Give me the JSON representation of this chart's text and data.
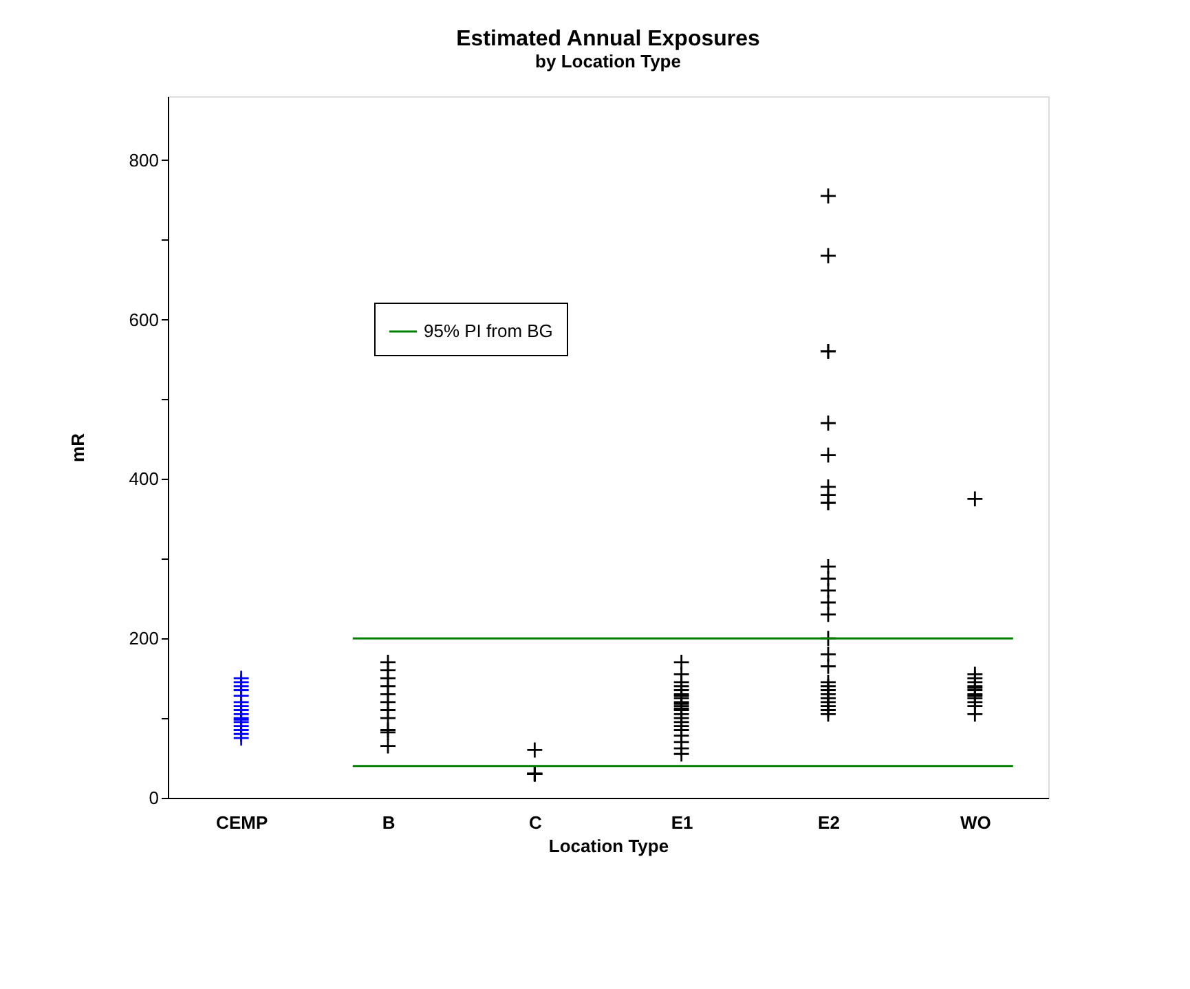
{
  "chart_data": {
    "type": "scatter",
    "title": "Estimated Annual Exposures",
    "subtitle": "by Location Type",
    "xlabel": "Location Type",
    "ylabel": "mR",
    "categories": [
      "CEMP",
      "B",
      "C",
      "E1",
      "E2",
      "WO"
    ],
    "series": [
      {
        "color": "#0000ff",
        "x": [
          "CEMP",
          "CEMP",
          "CEMP",
          "CEMP",
          "CEMP",
          "CEMP",
          "CEMP",
          "CEMP",
          "CEMP",
          "CEMP",
          "CEMP",
          "CEMP",
          "CEMP",
          "CEMP",
          "CEMP",
          "CEMP"
        ],
        "values": [
          150,
          145,
          140,
          135,
          128,
          120,
          115,
          110,
          105,
          100,
          98,
          95,
          90,
          85,
          80,
          75
        ]
      },
      {
        "color": "#000000",
        "x": [
          "B",
          "B",
          "B",
          "B",
          "B",
          "B",
          "B",
          "B",
          "B",
          "B",
          "B",
          "C",
          "C",
          "C",
          "C",
          "C",
          "C",
          "E1",
          "E1",
          "E1",
          "E1",
          "E1",
          "E1",
          "E1",
          "E1",
          "E1",
          "E1",
          "E1",
          "E1",
          "E1",
          "E1",
          "E1",
          "E1",
          "E1",
          "E1",
          "E1",
          "E1",
          "E1",
          "E1",
          "E2",
          "E2",
          "E2",
          "E2",
          "E2",
          "E2",
          "E2",
          "E2",
          "E2",
          "E2",
          "E2",
          "E2",
          "E2",
          "E2",
          "E2",
          "E2",
          "E2",
          "E2",
          "E2",
          "E2",
          "E2",
          "E2",
          "E2",
          "E2",
          "E2",
          "E2",
          "E2",
          "WO",
          "WO",
          "WO",
          "WO",
          "WO",
          "WO",
          "WO",
          "WO",
          "WO",
          "WO",
          "WO",
          "WO",
          "WO"
        ],
        "values": [
          170,
          160,
          150,
          140,
          130,
          120,
          110,
          100,
          85,
          82,
          65,
          60,
          30,
          30,
          30,
          30,
          30,
          170,
          155,
          145,
          140,
          135,
          130,
          128,
          125,
          120,
          118,
          115,
          112,
          110,
          105,
          100,
          95,
          90,
          85,
          78,
          70,
          62,
          55,
          755,
          680,
          560,
          560,
          470,
          430,
          390,
          380,
          370,
          370,
          290,
          275,
          260,
          245,
          230,
          200,
          180,
          165,
          145,
          140,
          135,
          130,
          125,
          120,
          115,
          110,
          105,
          375,
          155,
          150,
          145,
          140,
          138,
          135,
          130,
          128,
          125,
          120,
          115,
          105
        ]
      }
    ],
    "ylim": [
      0,
      880
    ],
    "yticks": [
      0,
      {
        "value": 100,
        "label": null
      },
      200,
      {
        "value": 300,
        "label": null
      },
      400,
      {
        "value": 500,
        "label": null
      },
      600,
      {
        "value": 700,
        "label": null
      },
      800
    ],
    "ref_lines": [
      {
        "axis": "y",
        "value": 200,
        "label": "95% PI from BG",
        "color": "#008000"
      },
      {
        "axis": "y",
        "value": 40,
        "color": "#008000"
      }
    ],
    "marker": "cross",
    "grid": false,
    "legend": "top left"
  }
}
